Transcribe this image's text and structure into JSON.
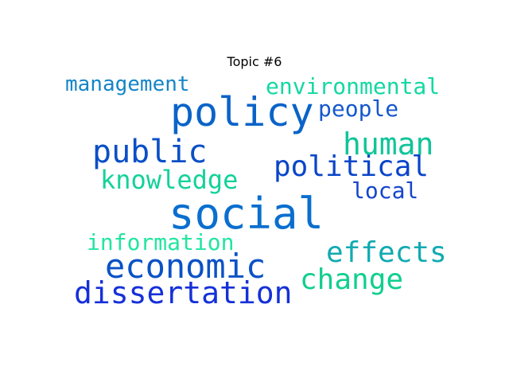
{
  "title": "Topic #6",
  "words": [
    {
      "text": "social",
      "color": "#0a6fcf"
    },
    {
      "text": "policy",
      "color": "#0a63c8"
    },
    {
      "text": "economic",
      "color": "#0a52c7"
    },
    {
      "text": "dissertation",
      "color": "#1530d8"
    },
    {
      "text": "public",
      "color": "#0a4fc6"
    },
    {
      "text": "political",
      "color": "#0a45c9"
    },
    {
      "text": "human",
      "color": "#10c49a"
    },
    {
      "text": "change",
      "color": "#10cf8e"
    },
    {
      "text": "effects",
      "color": "#11aab2"
    },
    {
      "text": "knowledge",
      "color": "#14d29a"
    },
    {
      "text": "environmental",
      "color": "#13d8a3"
    },
    {
      "text": "management",
      "color": "#1585c7"
    },
    {
      "text": "people",
      "color": "#1558cc"
    },
    {
      "text": "local",
      "color": "#1545cd"
    },
    {
      "text": "information",
      "color": "#22e5a0"
    }
  ]
}
